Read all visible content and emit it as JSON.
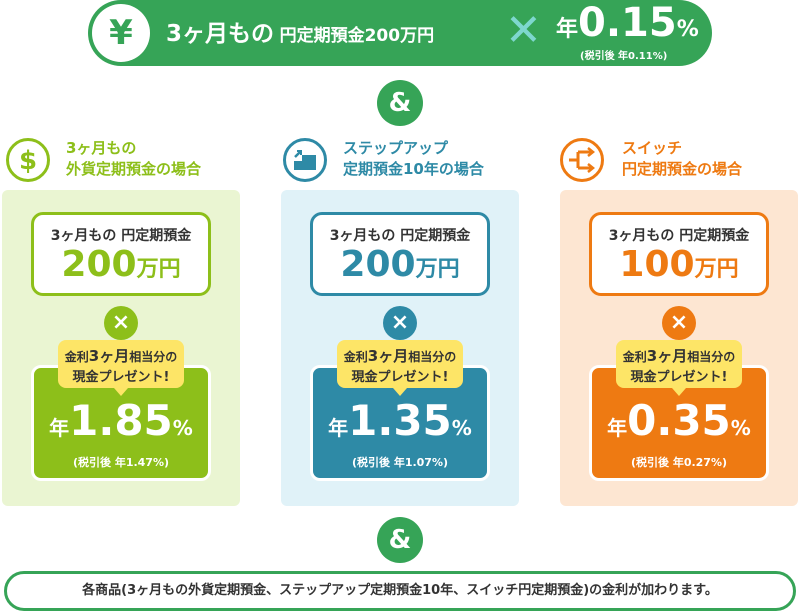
{
  "top": {
    "icon": "yen-icon",
    "icon_glyph": "¥",
    "term_text": "3ヶ月もの",
    "product_text": "円定期預金200万円",
    "times_glyph": "✕",
    "rate_prefix": "年",
    "rate_value": "0.15",
    "rate_unit": "%",
    "tax_text": "(税引後 年0.11%)"
  },
  "amp_symbol": "&",
  "columns": [
    {
      "icon": "dollar-icon",
      "title_line1": "3ヶ月もの",
      "title_line2": "外貨定期預金の場合",
      "amount_label": "3ヶ月もの 円定期預金",
      "amount_value": "200",
      "amount_unit": "万円",
      "times_glyph": "×",
      "bonus_line1_pre": "金利",
      "bonus_line1_em": "3ヶ月",
      "bonus_line1_post": "相当分の",
      "bonus_line2": "現金プレゼント!",
      "rate_prefix": "年",
      "rate_value": "1.85",
      "rate_unit": "%",
      "tax_text": "(税引後 年1.47%)"
    },
    {
      "icon": "step-up-icon",
      "title_line1": "ステップアップ",
      "title_line2": "定期預金10年の場合",
      "amount_label": "3ヶ月もの 円定期預金",
      "amount_value": "200",
      "amount_unit": "万円",
      "times_glyph": "×",
      "bonus_line1_pre": "金利",
      "bonus_line1_em": "3ヶ月",
      "bonus_line1_post": "相当分の",
      "bonus_line2": "現金プレゼント!",
      "rate_prefix": "年",
      "rate_value": "1.35",
      "rate_unit": "%",
      "tax_text": "(税引後 年1.07%)"
    },
    {
      "icon": "switch-icon",
      "title_line1": "スイッチ",
      "title_line2": "円定期預金の場合",
      "amount_label": "3ヶ月もの 円定期預金",
      "amount_value": "100",
      "amount_unit": "万円",
      "times_glyph": "×",
      "bonus_line1_pre": "金利",
      "bonus_line1_em": "3ヶ月",
      "bonus_line1_post": "相当分の",
      "bonus_line2": "現金プレゼント!",
      "rate_prefix": "年",
      "rate_value": "0.35",
      "rate_unit": "%",
      "tax_text": "(税引後 年0.27%)"
    }
  ],
  "footer_text": "各商品(3ヶ月もの外貨定期預金、ステップアップ定期預金10年、スイッチ円定期預金)の金利が加わります。",
  "colors": {
    "main_green": "#36a457",
    "col1_accent": "#8dbf1a",
    "col1_bg": "#eaf5d2",
    "col2_accent": "#2e8aa6",
    "col2_bg": "#e0f2f8",
    "col3_accent": "#ee7a12",
    "col3_bg": "#fde6d2",
    "balloon": "#fde567"
  }
}
